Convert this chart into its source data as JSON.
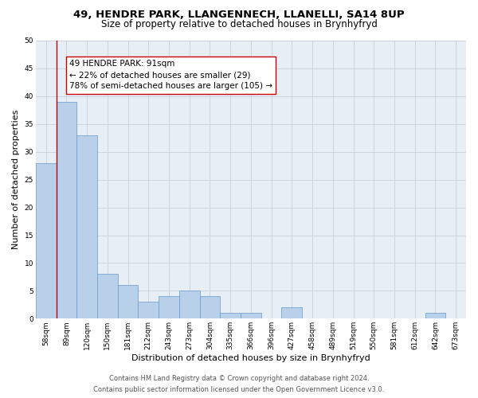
{
  "title1": "49, HENDRE PARK, LLANGENNECH, LLANELLI, SA14 8UP",
  "title2": "Size of property relative to detached houses in Brynhyfryd",
  "xlabel": "Distribution of detached houses by size in Brynhyfryd",
  "ylabel": "Number of detached properties",
  "categories": [
    "58sqm",
    "89sqm",
    "120sqm",
    "150sqm",
    "181sqm",
    "212sqm",
    "243sqm",
    "273sqm",
    "304sqm",
    "335sqm",
    "366sqm",
    "396sqm",
    "427sqm",
    "458sqm",
    "489sqm",
    "519sqm",
    "550sqm",
    "581sqm",
    "612sqm",
    "642sqm",
    "673sqm"
  ],
  "values": [
    28,
    39,
    33,
    8,
    6,
    3,
    4,
    5,
    4,
    1,
    1,
    0,
    2,
    0,
    0,
    0,
    0,
    0,
    0,
    1,
    0
  ],
  "bar_color": "#b8d0ea",
  "bar_edge_color": "#6699cc",
  "vline_color": "#cc0000",
  "annotation_text": "49 HENDRE PARK: 91sqm\n← 22% of detached houses are smaller (29)\n78% of semi-detached houses are larger (105) →",
  "annotation_box_color": "#ffffff",
  "annotation_box_edge": "#cc0000",
  "ylim": [
    0,
    50
  ],
  "yticks": [
    0,
    5,
    10,
    15,
    20,
    25,
    30,
    35,
    40,
    45,
    50
  ],
  "grid_color": "#c8d0dc",
  "bg_color": "#e8eef5",
  "footer1": "Contains HM Land Registry data © Crown copyright and database right 2024.",
  "footer2": "Contains public sector information licensed under the Open Government Licence v3.0.",
  "title1_fontsize": 9.5,
  "title2_fontsize": 8.5,
  "xlabel_fontsize": 8,
  "ylabel_fontsize": 8,
  "tick_fontsize": 6.5,
  "annotation_fontsize": 7.5,
  "footer_fontsize": 6.0
}
